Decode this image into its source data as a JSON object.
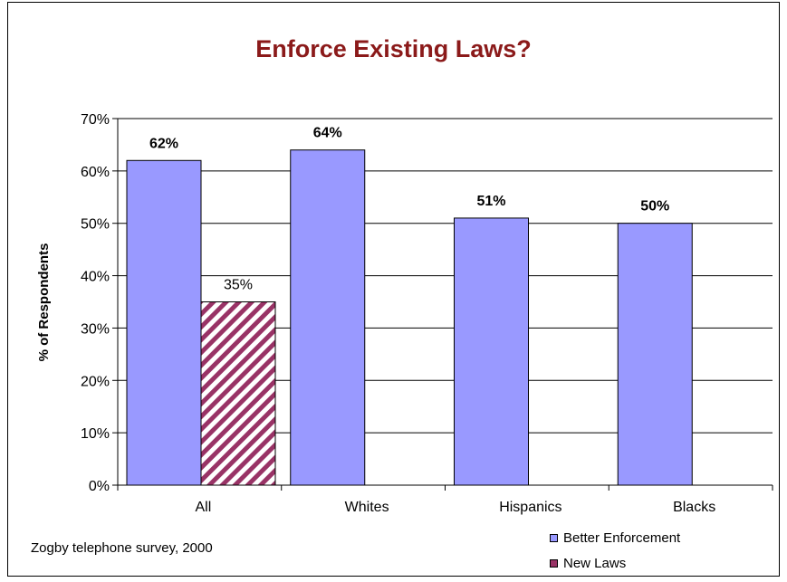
{
  "chart_data": {
    "type": "bar",
    "title": "Enforce Existing Laws?",
    "ylabel": "% of Respondents",
    "xlabel": "",
    "categories": [
      "All",
      "Whites",
      "Hispanics",
      "Blacks"
    ],
    "ylim": [
      0,
      70
    ],
    "yticks": [
      "0%",
      "10%",
      "20%",
      "30%",
      "40%",
      "50%",
      "60%",
      "70%"
    ],
    "series": [
      {
        "name": "Better Enforcement",
        "values": [
          62,
          64,
          51,
          50
        ],
        "labels": [
          "62%",
          "64%",
          "51%",
          "50%"
        ],
        "color": "#9999FF"
      },
      {
        "name": "New Laws",
        "values": [
          35,
          null,
          null,
          null
        ],
        "labels": [
          "35%",
          "",
          "",
          ""
        ],
        "color": "#993366"
      }
    ],
    "grid": true,
    "legend": "bottom-right"
  },
  "note": "Zogby telephone survey, 2000"
}
